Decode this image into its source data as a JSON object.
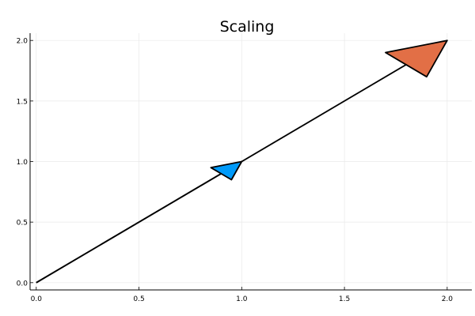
{
  "chart_data": {
    "type": "line",
    "title": "Scaling",
    "xlabel": "",
    "ylabel": "",
    "xlim": [
      -0.03,
      2.12
    ],
    "ylim": [
      -0.06,
      2.06
    ],
    "x_ticks": [
      0.0,
      0.5,
      1.0,
      1.5,
      2.0
    ],
    "y_ticks": [
      0.0,
      0.5,
      1.0,
      1.5,
      2.0
    ],
    "x_tick_labels": [
      "0.0",
      "0.5",
      "1.0",
      "1.5",
      "2.0"
    ],
    "y_tick_labels": [
      "0.0",
      "0.5",
      "1.0",
      "1.5",
      "2.0"
    ],
    "grid": true,
    "legend": "none",
    "line_color": "#000000",
    "series": [
      {
        "values": [
          [
            0,
            0
          ],
          [
            2,
            2
          ]
        ],
        "arrowhead": [
          [
            2.0,
            2.0
          ],
          [
            1.7,
            1.9
          ],
          [
            1.9,
            1.7
          ]
        ],
        "color": "#e26f46"
      },
      {
        "values": [
          [
            0,
            0
          ],
          [
            1,
            1
          ]
        ],
        "arrowhead": [
          [
            1.0,
            1.0
          ],
          [
            0.85,
            0.95
          ],
          [
            0.95,
            0.85
          ]
        ],
        "color": "#009af9"
      }
    ]
  }
}
